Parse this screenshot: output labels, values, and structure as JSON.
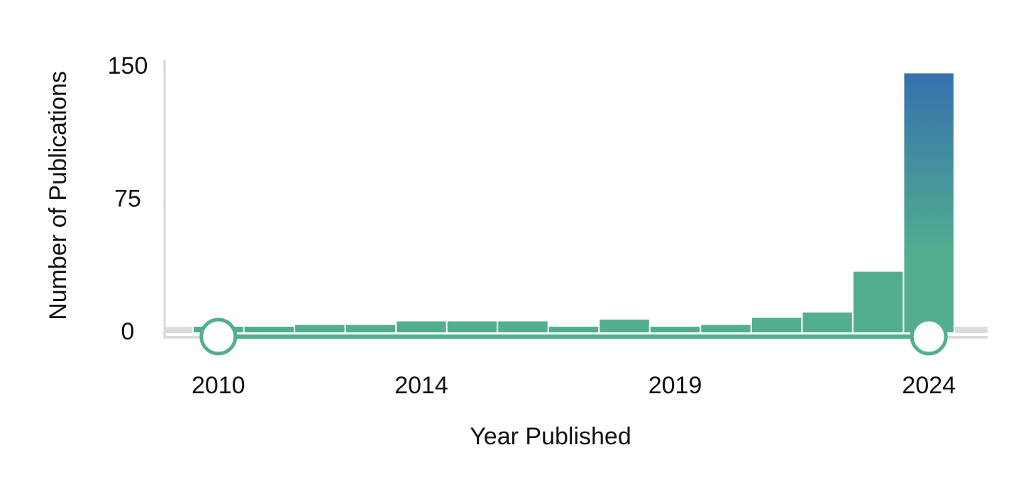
{
  "chart_data": {
    "type": "bar",
    "x_label": "Year Published",
    "y_label": "Number of Publications",
    "categories": [
      "2010",
      null,
      null,
      null,
      "2014",
      null,
      null,
      null,
      null,
      "2019",
      null,
      null,
      null,
      null,
      "2024"
    ],
    "values": [
      4,
      4,
      5,
      5,
      7,
      7,
      7,
      4,
      8,
      4,
      5,
      9,
      12,
      35,
      147
    ],
    "color": "#52ae8f",
    "gradient_top_color": "#3571ae",
    "ylim": [
      0,
      150
    ],
    "yticks": [
      0,
      75,
      150
    ]
  }
}
